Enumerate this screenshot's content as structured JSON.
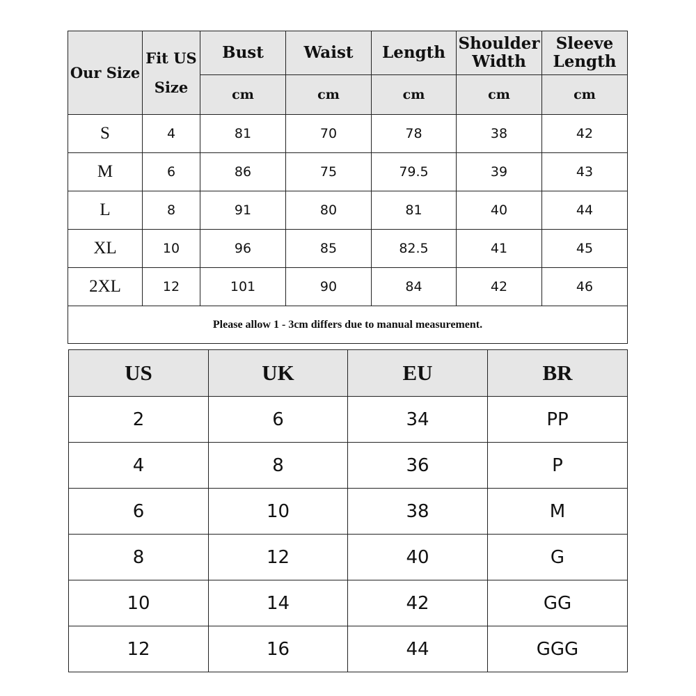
{
  "size_table": {
    "headers": {
      "our_size": "Our Size",
      "fit_us_line1": "Fit US",
      "fit_us_line2": "Size",
      "bust": "Bust",
      "waist": "Waist",
      "length": "Length",
      "shoulder_line1": "Shoulder",
      "shoulder_line2": "Width",
      "sleeve_line1": "Sleeve",
      "sleeve_line2": "Length",
      "unit": "cm"
    },
    "rows": [
      [
        "S",
        "4",
        "81",
        "70",
        "78",
        "38",
        "42"
      ],
      [
        "M",
        "6",
        "86",
        "75",
        "79.5",
        "39",
        "43"
      ],
      [
        "L",
        "8",
        "91",
        "80",
        "81",
        "40",
        "44"
      ],
      [
        "XL",
        "10",
        "96",
        "85",
        "82.5",
        "41",
        "45"
      ],
      [
        "2XL",
        "12",
        "101",
        "90",
        "84",
        "42",
        "46"
      ]
    ],
    "note": "Please allow 1 - 3cm differs due to manual measurement."
  },
  "conversion_table": {
    "headers": [
      "US",
      "UK",
      "EU",
      "BR"
    ],
    "rows": [
      [
        "2",
        "6",
        "34",
        "PP"
      ],
      [
        "4",
        "8",
        "36",
        "P"
      ],
      [
        "6",
        "10",
        "38",
        "M"
      ],
      [
        "8",
        "12",
        "40",
        "G"
      ],
      [
        "10",
        "14",
        "42",
        "GG"
      ],
      [
        "12",
        "16",
        "44",
        "GGG"
      ]
    ]
  },
  "colors": {
    "header_bg": "#e6e6e6",
    "border": "#222222"
  }
}
